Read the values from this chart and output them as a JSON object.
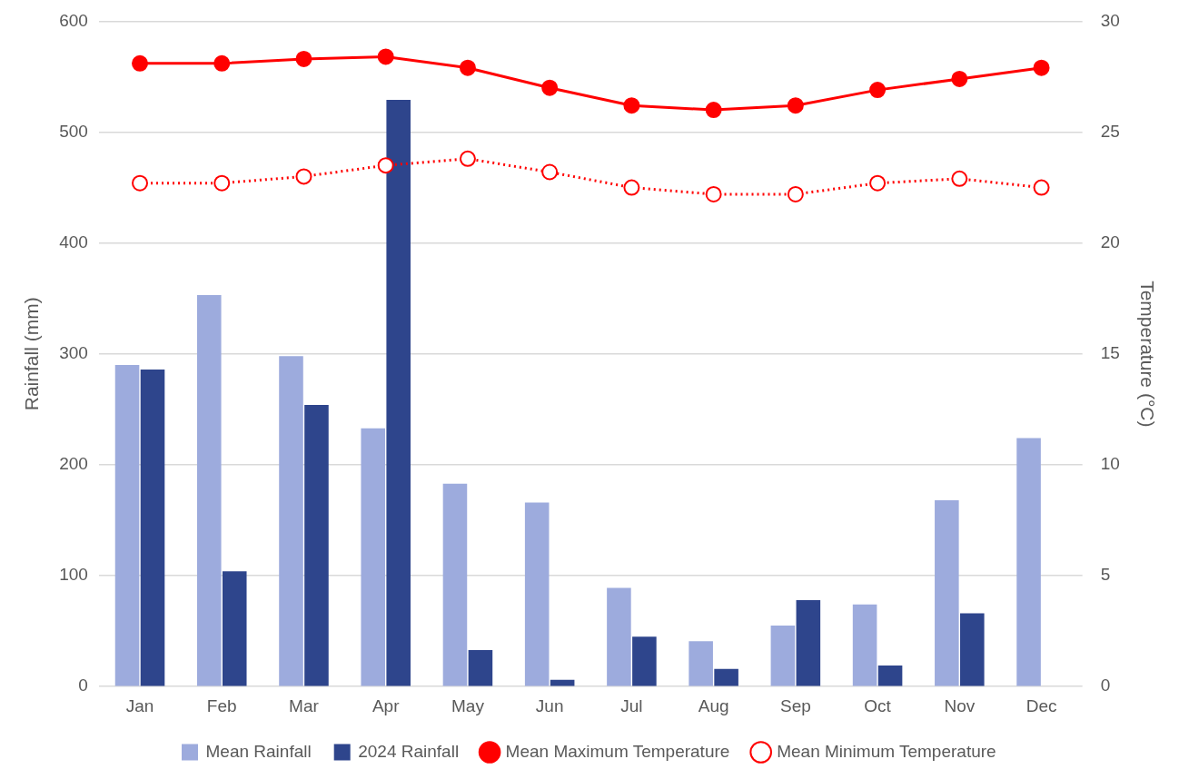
{
  "chart_data": {
    "type": "bar",
    "categories": [
      "Jan",
      "Feb",
      "Mar",
      "Apr",
      "May",
      "Jun",
      "Jul",
      "Aug",
      "Sep",
      "Oct",
      "Nov",
      "Dec"
    ],
    "ylabel": "Rainfall (mm)",
    "y2label": "Temperature (°C)",
    "ylim": [
      0,
      600
    ],
    "yticks": [
      0,
      100,
      200,
      300,
      400,
      500,
      600
    ],
    "y2lim": [
      0,
      30
    ],
    "y2ticks": [
      0,
      5,
      10,
      15,
      20,
      25,
      30
    ],
    "grid": "y",
    "legend": "bottom",
    "marker": "circle",
    "series": [
      {
        "name": "Mean Rainfall",
        "color": "#9dabdd",
        "values": [
          290,
          353,
          298,
          233,
          183,
          166,
          89,
          41,
          55,
          74,
          168,
          224
        ]
      },
      {
        "name": "2024 Rainfall",
        "color": "#2e458c",
        "values": [
          286,
          104,
          254,
          529,
          33,
          6,
          45,
          16,
          78,
          19,
          66,
          null
        ]
      },
      {
        "name": "Mean Maximum Temperature",
        "type": "line",
        "axis": "y2",
        "color": "#ff0000",
        "line_style": "solid",
        "values": [
          28.1,
          28.1,
          28.3,
          28.4,
          27.9,
          27.0,
          26.2,
          26.0,
          26.2,
          26.9,
          27.4,
          27.9
        ]
      },
      {
        "name": "Mean Minimum Temperature",
        "type": "line",
        "axis": "y2",
        "color": "#ff0000",
        "line_style": "dotted",
        "values": [
          22.7,
          22.7,
          23.0,
          23.5,
          23.8,
          23.2,
          22.5,
          22.2,
          22.2,
          22.7,
          22.9,
          22.5
        ]
      }
    ]
  }
}
